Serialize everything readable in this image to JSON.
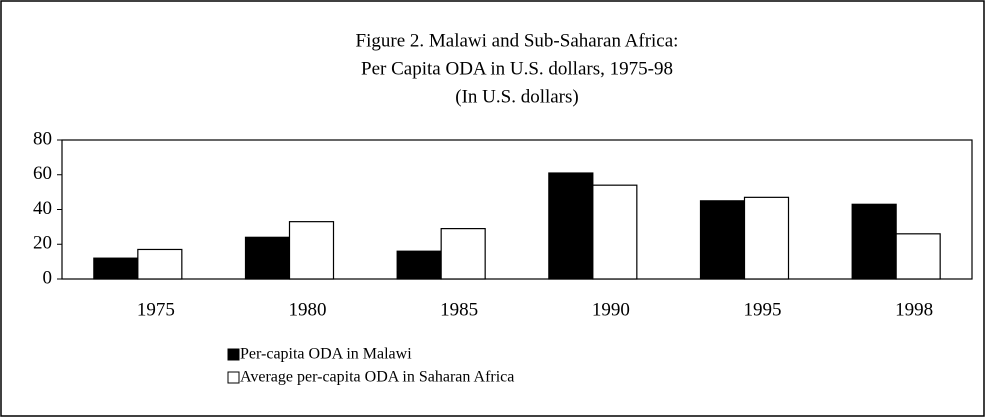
{
  "chart_data": {
    "type": "bar",
    "title": [
      "Figure 2. Malawi and Sub-Saharan Africa:",
      "Per Capita ODA in U.S. dollars, 1975-98",
      "(In U.S. dollars)"
    ],
    "categories": [
      "1975",
      "1980",
      "1985",
      "1990",
      "1995",
      "1998"
    ],
    "series": [
      {
        "name": "Per-capita ODA in Malawi",
        "color": "#000000",
        "values": [
          12,
          24,
          16,
          61,
          45,
          43
        ]
      },
      {
        "name": "Average per-capita ODA in Saharan Africa",
        "color": "#ffffff",
        "values": [
          17,
          33,
          29,
          54,
          47,
          26
        ]
      }
    ],
    "ylim": [
      0,
      80
    ],
    "yticks": [
      0,
      20,
      40,
      60,
      80
    ],
    "grid": false
  }
}
